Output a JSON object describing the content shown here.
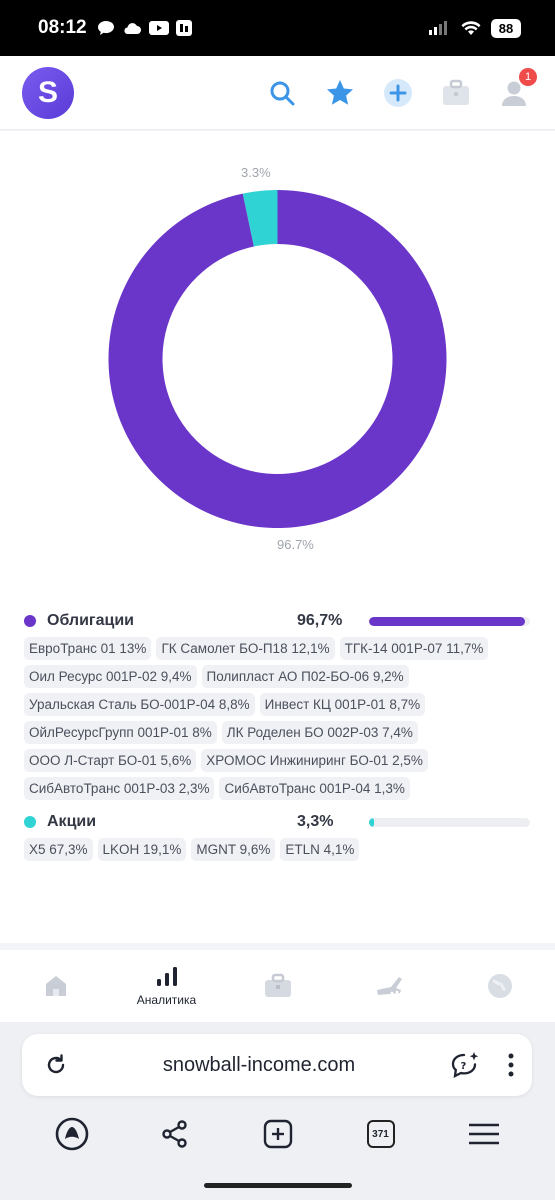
{
  "status_bar": {
    "time": "08:12",
    "battery": "88"
  },
  "header": {
    "logo_letter": "S",
    "notification_count": "1"
  },
  "donut": {
    "label_small": "3.3%",
    "label_large": "96.7%"
  },
  "chart_data": {
    "type": "pie",
    "categories": [
      "Облигации",
      "Акции"
    ],
    "values": [
      96.7,
      3.3
    ],
    "colors": [
      "#6a35c9",
      "#2fd3d3"
    ]
  },
  "legend": {
    "categories": [
      {
        "name": "Облигации",
        "pct": "96,7%",
        "fill": 0.967,
        "color": "#6a35c9",
        "chips": [
          "ЕвроТранс 01 13%",
          "ГК Самолет БО-П18 12,1%",
          "ТГК-14 001Р-07 11,7%",
          "Оил Ресурс 001Р-02 9,4%",
          "Полипласт АО П02-БО-06 9,2%",
          "Уральская Сталь БО-001Р-04 8,8%",
          "Инвест КЦ 001Р-01 8,7%",
          "ОйлРесурсГрупп 001Р-01 8%",
          "ЛК Роделен БО 002Р-03 7,4%",
          "ООО Л-Старт БО-01 5,6%",
          "ХРОМОС Инжиниринг БО-01 2,5%",
          "СибАвтоТранс 001Р-03 2,3%",
          "СибАвтоТранс 001Р-04 1,3%"
        ]
      },
      {
        "name": "Акции",
        "pct": "3,3%",
        "fill": 0.033,
        "color": "#2fd3d3",
        "chips": [
          "X5 67,3%",
          "LKOH 19,1%",
          "MGNT 9,6%",
          "ETLN 4,1%"
        ]
      }
    ]
  },
  "bottom_nav": {
    "items": [
      {
        "icon": "home-icon",
        "label": ""
      },
      {
        "icon": "analytics-icon",
        "label": "Аналитика"
      },
      {
        "icon": "briefcase-icon",
        "label": ""
      },
      {
        "icon": "ski-icon",
        "label": ""
      },
      {
        "icon": "globe-icon",
        "label": ""
      }
    ]
  },
  "browser": {
    "url": "snowball-income.com",
    "tab_count": "371"
  }
}
